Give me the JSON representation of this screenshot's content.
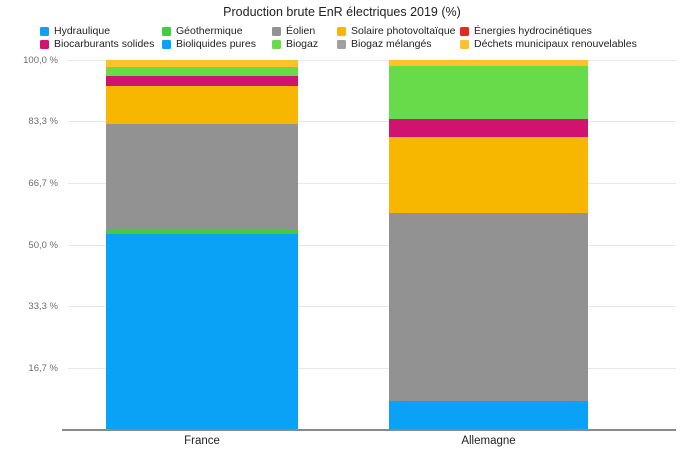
{
  "title": "Production brute EnR électriques 2019 (%)",
  "colors": {
    "hydraulique": "#0aa2f6",
    "biocarburants_solides": "#d0136e",
    "geothermique": "#3ecf3e",
    "bioliquides_pures": "#0aa2f6",
    "eolien": "#929292",
    "biogaz": "#67db49",
    "solaire_photovoltaique": "#f7b600",
    "biogaz_melanges": "#a0a0a0",
    "energies_hydrocinetiques": "#e6281e",
    "dechets_municipaux": "#fcc22e",
    "gridline": "#e7e7e7",
    "axis": "#8a8a8a"
  },
  "chart_data": {
    "type": "bar",
    "stacked": true,
    "title": "Production brute EnR électriques 2019 (%)",
    "categories": [
      "France",
      "Allemagne"
    ],
    "series": [
      {
        "name": "Hydraulique",
        "color": "#0aa2f6",
        "values": [
          53.0,
          7.8
        ]
      },
      {
        "name": "Géothermique",
        "color": "#3ecf3e",
        "values": [
          1.1,
          0
        ]
      },
      {
        "name": "Éolien",
        "color": "#929292",
        "values": [
          28.6,
          50.8
        ]
      },
      {
        "name": "Solaire photovoltaïque",
        "color": "#f7b600",
        "values": [
          10.2,
          20.5
        ]
      },
      {
        "name": "Énergies hydrocinétiques",
        "color": "#e6281e",
        "values": [
          0,
          0
        ]
      },
      {
        "name": "Biocarburants solides",
        "color": "#d0136e",
        "values": [
          2.7,
          4.9
        ]
      },
      {
        "name": "Bioliquides pures",
        "color": "#0aa2f6",
        "values": [
          0,
          0
        ]
      },
      {
        "name": "Biogaz",
        "color": "#67db49",
        "values": [
          2.4,
          14.3
        ]
      },
      {
        "name": "Biogaz mélangés",
        "color": "#a0a0a0",
        "values": [
          0,
          0
        ]
      },
      {
        "name": "Déchets municipaux renouvelables",
        "color": "#fcc22e",
        "values": [
          2.0,
          1.7
        ]
      }
    ],
    "y_ticks": [
      "100,0 %",
      "83,3 %",
      "66,7 %",
      "50,0 %",
      "33,3 %",
      "16,7 %"
    ],
    "ylim": [
      0,
      100
    ],
    "grid": true,
    "legend_position": "top",
    "xlabel": "",
    "ylabel": ""
  }
}
